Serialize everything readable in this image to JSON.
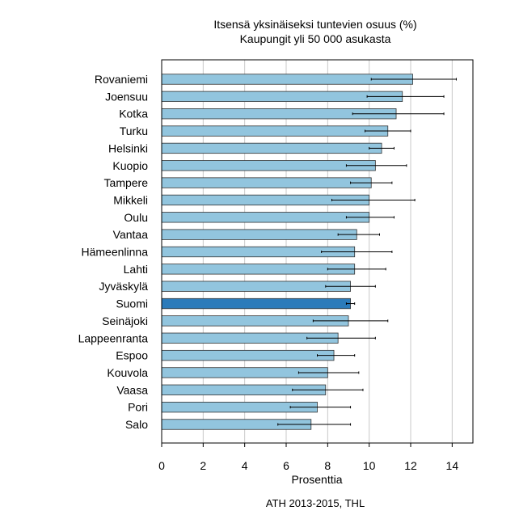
{
  "chart_data": {
    "type": "bar",
    "orientation": "horizontal",
    "title": "Itsensä yksinäiseksi tuntevien osuus (%)",
    "subtitle": "Kaupungit yli 50 000 asukasta",
    "xlabel": "Prosenttia",
    "ylabel": "",
    "source": "ATH 2013-2015, THL",
    "xlim": [
      0,
      15
    ],
    "xticks": [
      "0",
      "2",
      "4",
      "6",
      "8",
      "10",
      "12",
      "14"
    ],
    "grid": "vertical",
    "bar_color": "#92c5de",
    "highlight_color": "#2b7bba",
    "highlight_category": "Suomi",
    "categories": [
      "Rovaniemi",
      "Joensuu",
      "Kotka",
      "Turku",
      "Helsinki",
      "Kuopio",
      "Tampere",
      "Mikkeli",
      "Oulu",
      "Vantaa",
      "Hämeenlinna",
      "Lahti",
      "Jyväskylä",
      "Suomi",
      "Seinäjoki",
      "Lappeenranta",
      "Espoo",
      "Kouvola",
      "Vaasa",
      "Pori",
      "Salo"
    ],
    "values": [
      12.1,
      11.6,
      11.3,
      10.9,
      10.6,
      10.3,
      10.1,
      10.0,
      10.0,
      9.4,
      9.3,
      9.3,
      9.1,
      9.1,
      9.0,
      8.5,
      8.3,
      8.0,
      7.9,
      7.5,
      7.2
    ],
    "ci_low": [
      10.1,
      9.9,
      9.2,
      9.8,
      10.0,
      8.9,
      9.1,
      8.2,
      8.9,
      8.5,
      7.7,
      8.0,
      7.9,
      8.9,
      7.3,
      7.0,
      7.5,
      6.6,
      6.3,
      6.2,
      5.6
    ],
    "ci_high": [
      14.2,
      13.6,
      13.6,
      12.0,
      11.2,
      11.8,
      11.1,
      12.2,
      11.2,
      10.5,
      11.1,
      10.8,
      10.3,
      9.3,
      10.9,
      10.3,
      9.3,
      9.5,
      9.7,
      9.1,
      9.1
    ]
  }
}
